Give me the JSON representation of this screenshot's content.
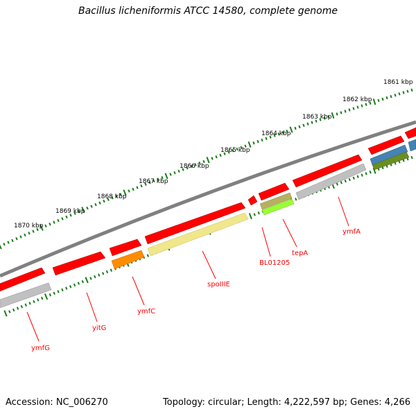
{
  "title": "Bacillus licheniformis ATCC 14580, complete genome",
  "footer": {
    "accession": "Accession: NC_006270",
    "summary": "Topology: circular; Length: 4,222,597 bp; Genes: 4,266"
  },
  "colors": {
    "background": "#ffffff",
    "backbone": "#808080",
    "scale_ticks": "#1a7a1a",
    "gene_forward": "#ff0000",
    "gene_reverse": "#c0c0c0",
    "label_text": "#ff0000",
    "spoIIIE": "#f0e68c",
    "ymfC": "#ff8c00",
    "tepA_top": "#b8b060",
    "tepA_bottom": "#99ff33",
    "blue_feature": "#4682b4",
    "olive_feature": "#6b8e23"
  },
  "scale_labels": [
    "1861 kbp",
    "1862 kbp",
    "1863 kbp",
    "1864 kbp",
    "1865 kbp",
    "1866 kbp",
    "1867 kbp",
    "1868 kbp",
    "1869 kbp",
    "1870 kbp"
  ],
  "gene_labels": [
    "ymfA",
    "tepA",
    "BL01205",
    "spoIIIE",
    "ymfC",
    "yitG",
    "ymfG"
  ]
}
